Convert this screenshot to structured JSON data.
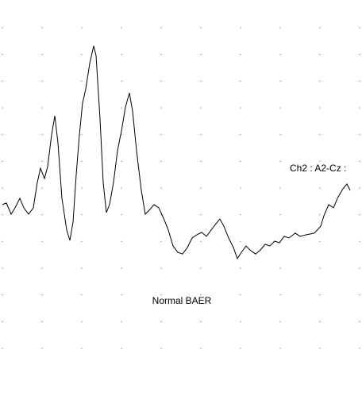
{
  "chart_data": {
    "type": "line",
    "title": "Normal BAER",
    "x": [
      0,
      0.1,
      0.22,
      0.32,
      0.44,
      0.54,
      0.66,
      0.78,
      0.88,
      0.96,
      1.06,
      1.14,
      1.24,
      1.32,
      1.4,
      1.5,
      1.62,
      1.7,
      1.78,
      1.86,
      1.94,
      2.02,
      2.1,
      2.2,
      2.3,
      2.36,
      2.46,
      2.54,
      2.62,
      2.7,
      2.8,
      2.9,
      3.0,
      3.1,
      3.2,
      3.28,
      3.38,
      3.5,
      3.6,
      3.7,
      3.82,
      3.94,
      4.06,
      4.18,
      4.3,
      4.42,
      4.54,
      4.66,
      4.78,
      4.9,
      5.02,
      5.14,
      5.26,
      5.38,
      5.48,
      5.58,
      5.7,
      5.82,
      5.92,
      6.02,
      6.14,
      6.26,
      6.38,
      6.5,
      6.62,
      6.74,
      6.86,
      6.98,
      7.1,
      7.22,
      7.38,
      7.5,
      7.66,
      7.86,
      8.02,
      8.1,
      8.22,
      8.34,
      8.46,
      8.58,
      8.68,
      8.76
    ],
    "series": [
      {
        "name": "Ch2 : A2-Cz :",
        "color": "#000000",
        "values": [
          5.38,
          5.44,
          5.02,
          5.26,
          5.61,
          5.26,
          5.02,
          5.26,
          6.21,
          6.74,
          6.36,
          6.8,
          7.99,
          8.7,
          7.69,
          5.61,
          4.43,
          4.04,
          4.72,
          6.5,
          7.99,
          9.18,
          9.71,
          10.66,
          11.32,
          10.96,
          8.58,
          6.21,
          5.08,
          5.38,
          6.21,
          7.4,
          8.14,
          9.03,
          9.56,
          8.88,
          7.4,
          5.91,
          5.02,
          5.17,
          5.38,
          5.26,
          4.87,
          4.43,
          3.83,
          3.59,
          3.53,
          3.77,
          4.13,
          4.25,
          4.34,
          4.19,
          4.43,
          4.66,
          4.84,
          4.57,
          4.13,
          3.77,
          3.36,
          3.59,
          3.83,
          3.65,
          3.53,
          3.68,
          3.89,
          3.83,
          4.01,
          3.95,
          4.19,
          4.13,
          4.31,
          4.19,
          4.25,
          4.31,
          4.57,
          4.96,
          5.38,
          5.26,
          5.67,
          5.97,
          6.15,
          5.91
        ]
      }
    ],
    "xlim": [
      0,
      9
    ],
    "ylim": [
      0,
      12
    ],
    "grid": true
  }
}
